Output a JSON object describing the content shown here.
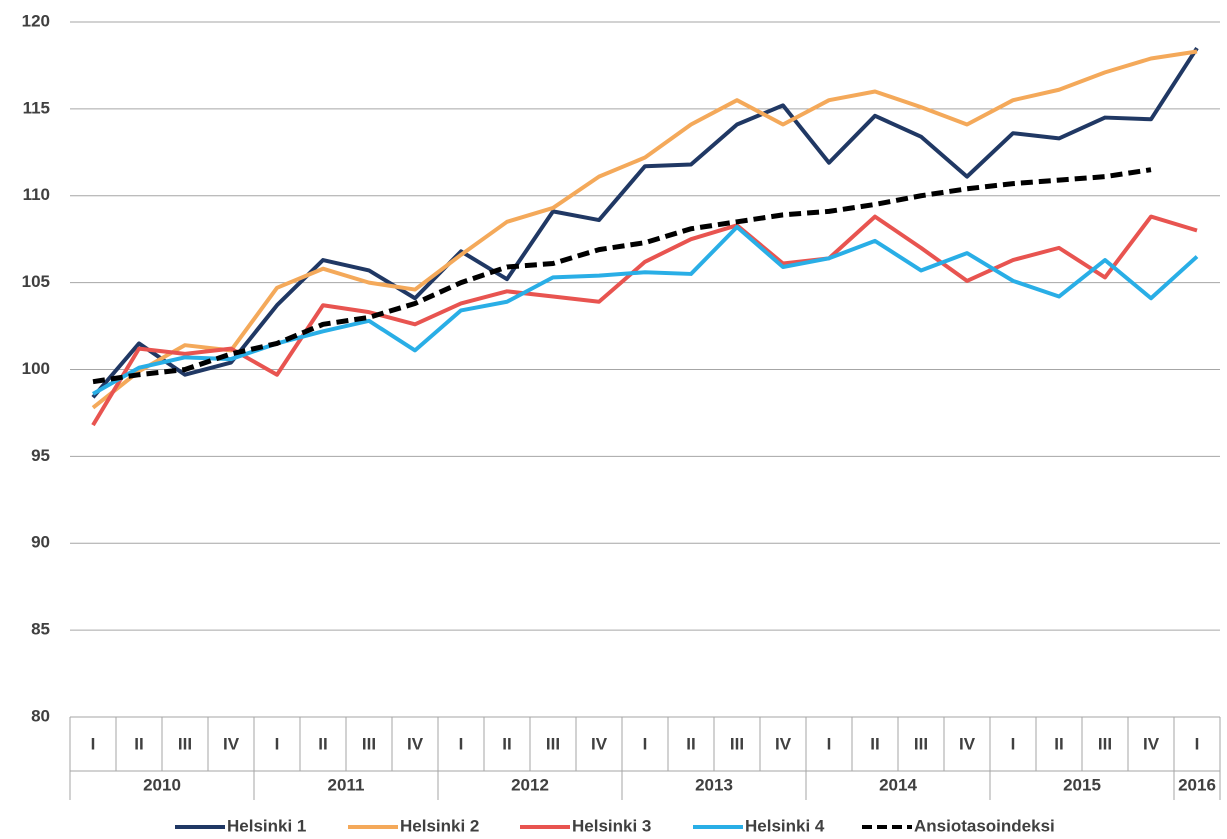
{
  "chart_data": {
    "type": "line",
    "categories": [
      "I",
      "II",
      "III",
      "IV",
      "I",
      "II",
      "III",
      "IV",
      "I",
      "II",
      "III",
      "IV",
      "I",
      "II",
      "III",
      "IV",
      "I",
      "II",
      "III",
      "IV",
      "I",
      "II",
      "III",
      "IV",
      "I"
    ],
    "groups": [
      {
        "label": "2010",
        "size": 4
      },
      {
        "label": "2011",
        "size": 4
      },
      {
        "label": "2012",
        "size": 4
      },
      {
        "label": "2013",
        "size": 4
      },
      {
        "label": "2014",
        "size": 4
      },
      {
        "label": "2015",
        "size": 4
      },
      {
        "label": "2016",
        "size": 1
      }
    ],
    "series": [
      {
        "name": "Helsinki 1",
        "color": "#203864",
        "values": [
          98.4,
          101.5,
          99.7,
          100.4,
          103.7,
          106.3,
          105.7,
          104.1,
          106.8,
          105.2,
          109.1,
          108.6,
          111.7,
          111.8,
          114.1,
          115.2,
          111.9,
          114.6,
          113.4,
          111.1,
          113.6,
          113.3,
          114.5,
          114.4,
          118.5
        ]
      },
      {
        "name": "Helsinki 2",
        "color": "#f4a95a",
        "values": [
          97.8,
          99.9,
          101.4,
          101.1,
          104.7,
          105.8,
          105.0,
          104.6,
          106.6,
          108.5,
          109.3,
          111.1,
          112.2,
          114.1,
          115.5,
          114.1,
          115.5,
          116.0,
          115.1,
          114.1,
          115.5,
          116.1,
          117.1,
          117.9,
          118.3
        ]
      },
      {
        "name": "Helsinki 3",
        "color": "#e85450",
        "values": [
          96.8,
          101.2,
          100.9,
          101.2,
          99.7,
          103.7,
          103.3,
          102.6,
          103.8,
          104.5,
          104.2,
          103.9,
          106.2,
          107.5,
          108.3,
          106.1,
          106.4,
          108.8,
          107.0,
          105.1,
          106.3,
          107.0,
          105.3,
          108.8,
          108.0
        ]
      },
      {
        "name": "Helsinki 4",
        "color": "#29aee6",
        "values": [
          98.6,
          100.1,
          100.7,
          100.6,
          101.5,
          102.2,
          102.8,
          101.1,
          103.4,
          103.9,
          105.3,
          105.4,
          105.6,
          105.5,
          108.2,
          105.9,
          106.4,
          107.4,
          105.7,
          106.7,
          105.1,
          104.2,
          106.3,
          104.1,
          106.5
        ]
      },
      {
        "name": "Ansiotasoindeksi",
        "color": "#000000",
        "dashed": true,
        "values": [
          99.3,
          99.7,
          100.0,
          100.9,
          101.5,
          102.6,
          103.0,
          103.8,
          105.0,
          105.9,
          106.1,
          106.9,
          107.3,
          108.1,
          108.5,
          108.9,
          109.1,
          109.5,
          110.0,
          110.4,
          110.7,
          110.9,
          111.1,
          111.5,
          null
        ]
      }
    ],
    "ylim": [
      80,
      120
    ],
    "yticks": [
      80,
      85,
      90,
      95,
      100,
      105,
      110,
      115,
      120
    ],
    "grid": true,
    "legend": "bottom"
  }
}
